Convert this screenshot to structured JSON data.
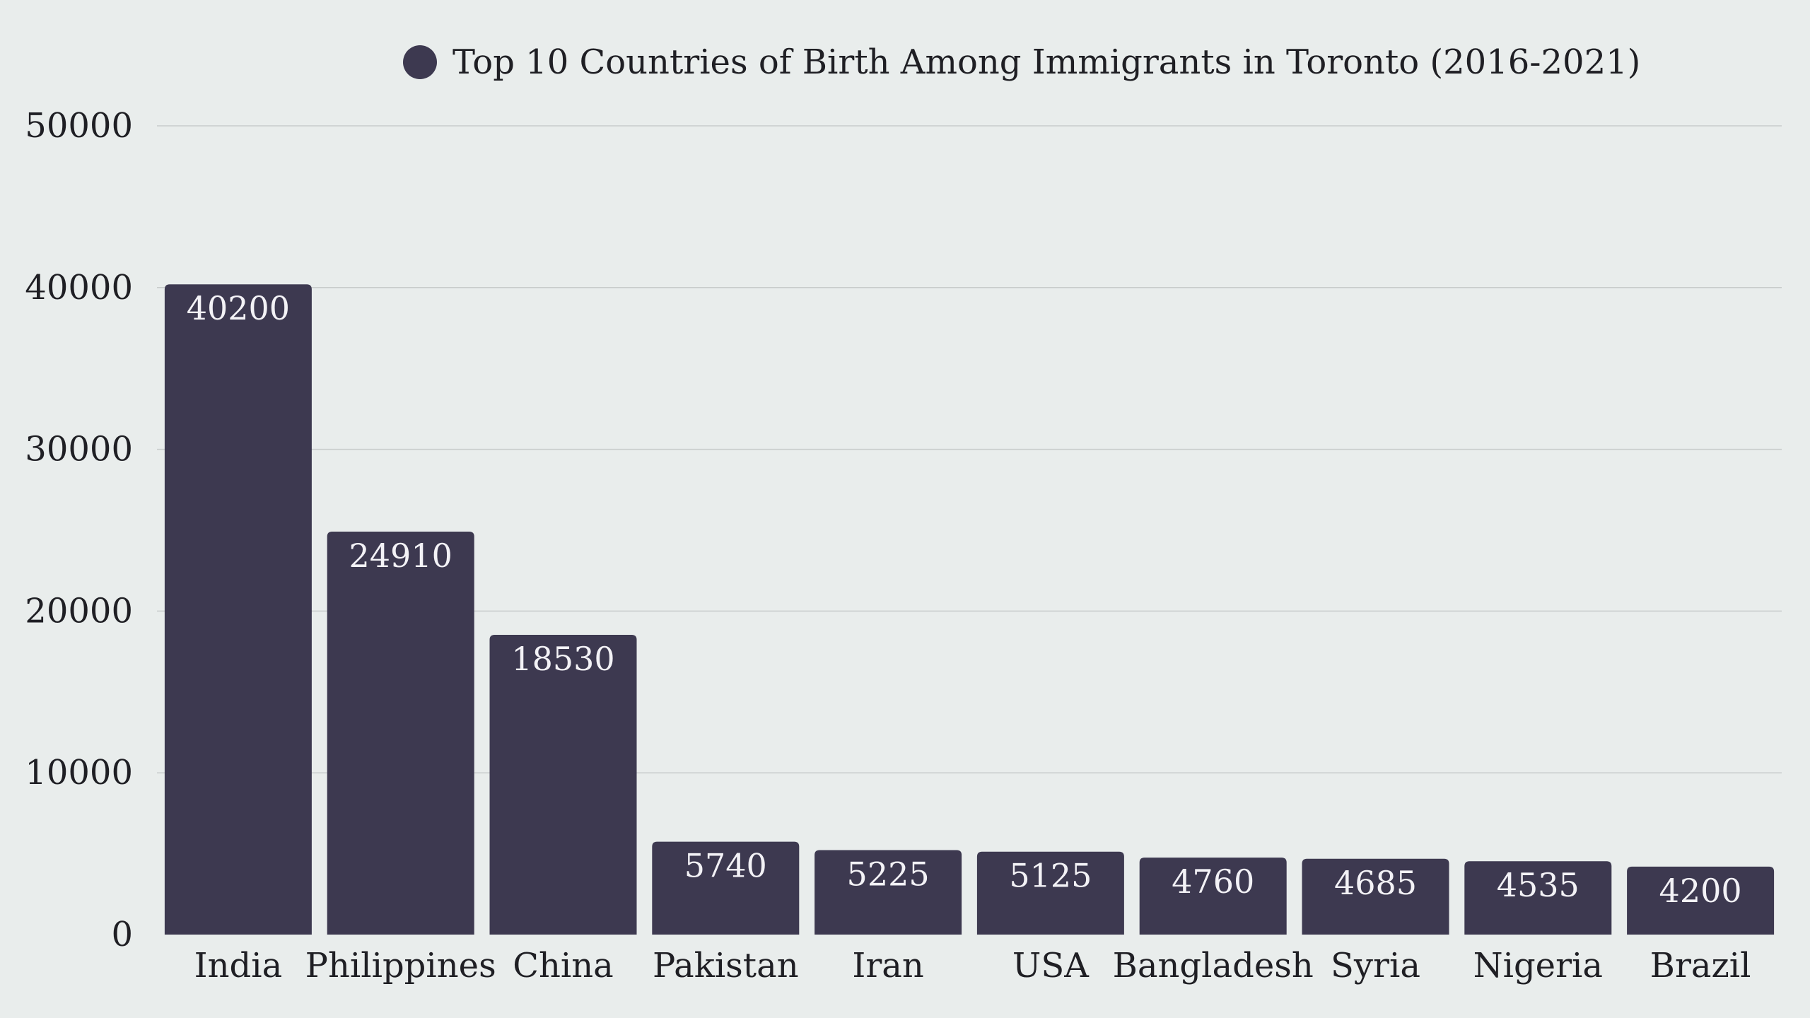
{
  "chart_data": {
    "type": "bar",
    "categories": [
      "India",
      "Philippines",
      "China",
      "Pakistan",
      "Iran",
      "USA",
      "Bangladesh",
      "Syria",
      "Nigeria",
      "Brazil"
    ],
    "series": [
      {
        "name": "Top 10 Countries of Birth Among Immigrants in Toronto (2016-2021)",
        "values": [
          40200,
          24910,
          18530,
          5740,
          5225,
          5125,
          4760,
          4685,
          4535,
          4200
        ]
      }
    ],
    "ylim": [
      0,
      50000
    ],
    "yticks": [
      "0",
      "10000",
      "20000",
      "30000",
      "40000",
      "50000"
    ],
    "grid": true,
    "legend_position": "top-center",
    "data_labels": [
      "40200",
      "24910",
      "18530",
      "5740",
      "5225",
      "5125",
      "4760",
      "4685",
      "4535",
      "4200"
    ]
  },
  "colors": {
    "bar": "#3d3950",
    "bar_label": "#f3f2f6",
    "gridline": "#c8cccb",
    "axis_text": "#1f1f24",
    "background": "#e9edec"
  }
}
